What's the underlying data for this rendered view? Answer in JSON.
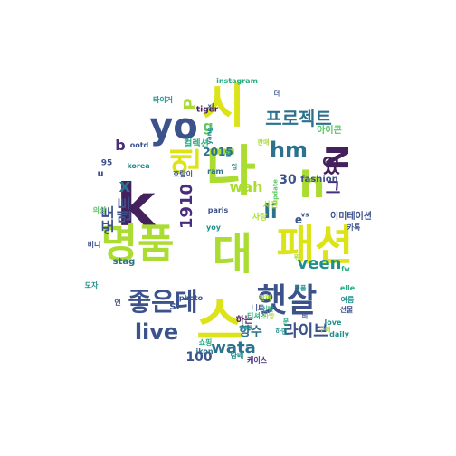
{
  "palette": {
    "dark_purple": "#44205c",
    "purple": "#472d7b",
    "indigo": "#3b528b",
    "blue": "#2c728e",
    "teal": "#21908d",
    "green": "#27ad81",
    "lime": "#5dc863",
    "yellow_green": "#aadc32",
    "yellow": "#dce319"
  },
  "words": [
    {
      "text": "시",
      "color": "#dce319",
      "rot": "h"
    },
    {
      "text": "다",
      "color": "#aadc32",
      "rot": "h"
    },
    {
      "text": "k",
      "color": "#44205c",
      "rot": "h"
    },
    {
      "text": "yo",
      "color": "#3b528b",
      "rot": "h"
    },
    {
      "text": "h",
      "color": "#aadc32",
      "rot": "h"
    },
    {
      "text": "명품",
      "color": "#aadc32",
      "rot": "h"
    },
    {
      "text": "대",
      "color": "#aadc32",
      "rot": "h"
    },
    {
      "text": "패션",
      "color": "#dce319",
      "rot": "h"
    },
    {
      "text": "햇살",
      "color": "#3b528b",
      "rot": "h"
    },
    {
      "text": "스",
      "color": "#dce319",
      "rot": "h"
    },
    {
      "text": "좋은데",
      "color": "#3b528b",
      "rot": "h"
    },
    {
      "text": "엔",
      "color": "#dce319",
      "rot": "v"
    },
    {
      "text": "N",
      "color": "#44205c",
      "rot": "v"
    },
    {
      "text": "hm",
      "color": "#2c728e",
      "rot": "h"
    },
    {
      "text": "프로젝트",
      "color": "#2c728e",
      "rot": "h"
    },
    {
      "text": "live",
      "color": "#3b528b",
      "rot": "h"
    },
    {
      "text": "라이브",
      "color": "#3b528b",
      "rot": "h"
    },
    {
      "text": "wah",
      "color": "#aadc32",
      "rot": "h"
    },
    {
      "text": "li",
      "color": "#2c728e",
      "rot": "h"
    },
    {
      "text": "veen",
      "color": "#21908d",
      "rot": "h"
    },
    {
      "text": "wata",
      "color": "#2c728e",
      "rot": "h"
    },
    {
      "text": "포토",
      "color": "#3b528b",
      "rot": "v"
    },
    {
      "text": "멘트",
      "color": "#3b528b",
      "rot": "v"
    },
    {
      "text": "1910",
      "color": "#472d7b",
      "rot": "v"
    },
    {
      "text": "x",
      "color": "#2c728e",
      "rot": "h"
    },
    {
      "text": "P",
      "color": "#aadc32",
      "rot": "v"
    },
    {
      "text": "g",
      "color": "#5dc863",
      "rot": "h"
    },
    {
      "text": "b",
      "color": "#472d7b",
      "rot": "h"
    },
    {
      "text": "2015",
      "color": "#2c728e",
      "rot": "h"
    },
    {
      "text": "30",
      "color": "#3b528b",
      "rot": "h"
    },
    {
      "text": "100",
      "color": "#3b528b",
      "rot": "h"
    },
    {
      "text": "있",
      "color": "#44205c",
      "rot": "h"
    },
    {
      "text": "그",
      "color": "#472d7b",
      "rot": "h"
    },
    {
      "text": "e",
      "color": "#3b528b",
      "rot": "h"
    },
    {
      "text": "향수",
      "color": "#2c728e",
      "rot": "h"
    },
    {
      "text": "하는",
      "color": "#44205c",
      "rot": "h"
    },
    {
      "text": "아이콘",
      "color": "#5dc863",
      "rot": "h"
    },
    {
      "text": "컬렉션",
      "color": "#27ad81",
      "rot": "h"
    },
    {
      "text": "이미테이션",
      "color": "#3b528b",
      "rot": "h"
    },
    {
      "text": "fashion",
      "color": "#3b528b",
      "rot": "h"
    },
    {
      "text": "stag",
      "color": "#2c728e",
      "rot": "h"
    },
    {
      "text": "ram",
      "color": "#2c728e",
      "rot": "h"
    },
    {
      "text": "instagram",
      "color": "#27ad81",
      "rot": "h"
    },
    {
      "text": "tiger",
      "color": "#44205c",
      "rot": "h"
    },
    {
      "text": "ootd",
      "color": "#3b528b",
      "rot": "h"
    },
    {
      "text": "korea",
      "color": "#21908d",
      "rot": "h"
    },
    {
      "text": "paris",
      "color": "#3b528b",
      "rot": "h"
    },
    {
      "text": "yoy",
      "color": "#21908d",
      "rot": "h"
    },
    {
      "text": "photo",
      "color": "#3b528b",
      "rot": "h"
    },
    {
      "text": "ikon",
      "color": "#2c728e",
      "rot": "h"
    },
    {
      "text": "daily",
      "color": "#21908d",
      "rot": "h"
    },
    {
      "text": "love",
      "color": "#21908d",
      "rot": "h"
    },
    {
      "text": "elle",
      "color": "#27ad81",
      "rot": "h"
    },
    {
      "text": "update",
      "color": "#5dc863",
      "rot": "v"
    },
    {
      "text": "yang",
      "color": "#21908d",
      "rot": "v"
    },
    {
      "text": "95",
      "color": "#3b528b",
      "rot": "h"
    },
    {
      "text": "c",
      "color": "#3b528b",
      "rot": "h"
    },
    {
      "text": "u",
      "color": "#3b528b",
      "rot": "h"
    },
    {
      "text": "si",
      "color": "#3b528b",
      "rot": "h"
    },
    {
      "text": "니트",
      "color": "#3b528b",
      "rot": "h"
    },
    {
      "text": "티셔츠",
      "color": "#27ad81",
      "rot": "h"
    },
    {
      "text": "사진",
      "color": "#aadc32",
      "rot": "h"
    },
    {
      "text": "사랑",
      "color": "#aadc32",
      "rot": "h"
    },
    {
      "text": "여름",
      "color": "#21908d",
      "rot": "h"
    },
    {
      "text": "선물",
      "color": "#3b528b",
      "rot": "h"
    },
    {
      "text": "케이스",
      "color": "#472d7b",
      "rot": "h"
    },
    {
      "text": "담배",
      "color": "#21908d",
      "rot": "h"
    },
    {
      "text": "팔찌",
      "color": "#aadc32",
      "rot": "h"
    },
    {
      "text": "신발",
      "color": "#27ad81",
      "rot": "h"
    },
    {
      "text": "가방",
      "color": "#aadc32",
      "rot": "h"
    },
    {
      "text": "호랑이",
      "color": "#3b528b",
      "rot": "h"
    },
    {
      "text": "타이거",
      "color": "#21908d",
      "rot": "h"
    },
    {
      "text": "쇼핑",
      "color": "#27ad81",
      "rot": "h"
    },
    {
      "text": "비니",
      "color": "#3b528b",
      "rot": "h"
    },
    {
      "text": "모자",
      "color": "#21908d",
      "rot": "h"
    },
    {
      "text": "의상",
      "color": "#5dc863",
      "rot": "h"
    },
    {
      "text": "카톡",
      "color": "#3b528b",
      "rot": "h"
    },
    {
      "text": "105",
      "color": "#21908d",
      "rot": "h"
    },
    {
      "text": "xl",
      "color": "#3b528b",
      "rot": "h"
    },
    {
      "text": "fw",
      "color": "#27ad81",
      "rot": "h"
    },
    {
      "text": "vs",
      "color": "#3b528b",
      "rot": "h"
    },
    {
      "text": "인",
      "color": "#3b528b",
      "rot": "h"
    },
    {
      "text": "입",
      "color": "#21908d",
      "rot": "h"
    },
    {
      "text": "일",
      "color": "#21908d",
      "rot": "h"
    },
    {
      "text": "분",
      "color": "#27ad81",
      "rot": "h"
    },
    {
      "text": "위",
      "color": "#aadc32",
      "rot": "h"
    },
    {
      "text": "비",
      "color": "#3b528b",
      "rot": "h"
    },
    {
      "text": "더",
      "color": "#3b528b",
      "rot": "h"
    },
    {
      "text": "판매",
      "color": "#aadc32",
      "rot": "h"
    },
    {
      "text": "정품",
      "color": "#21908d",
      "rot": "h"
    },
    {
      "text": "구매",
      "color": "#aadc32",
      "rot": "h"
    },
    {
      "text": "하면",
      "color": "#21908d",
      "rot": "h"
    }
  ]
}
